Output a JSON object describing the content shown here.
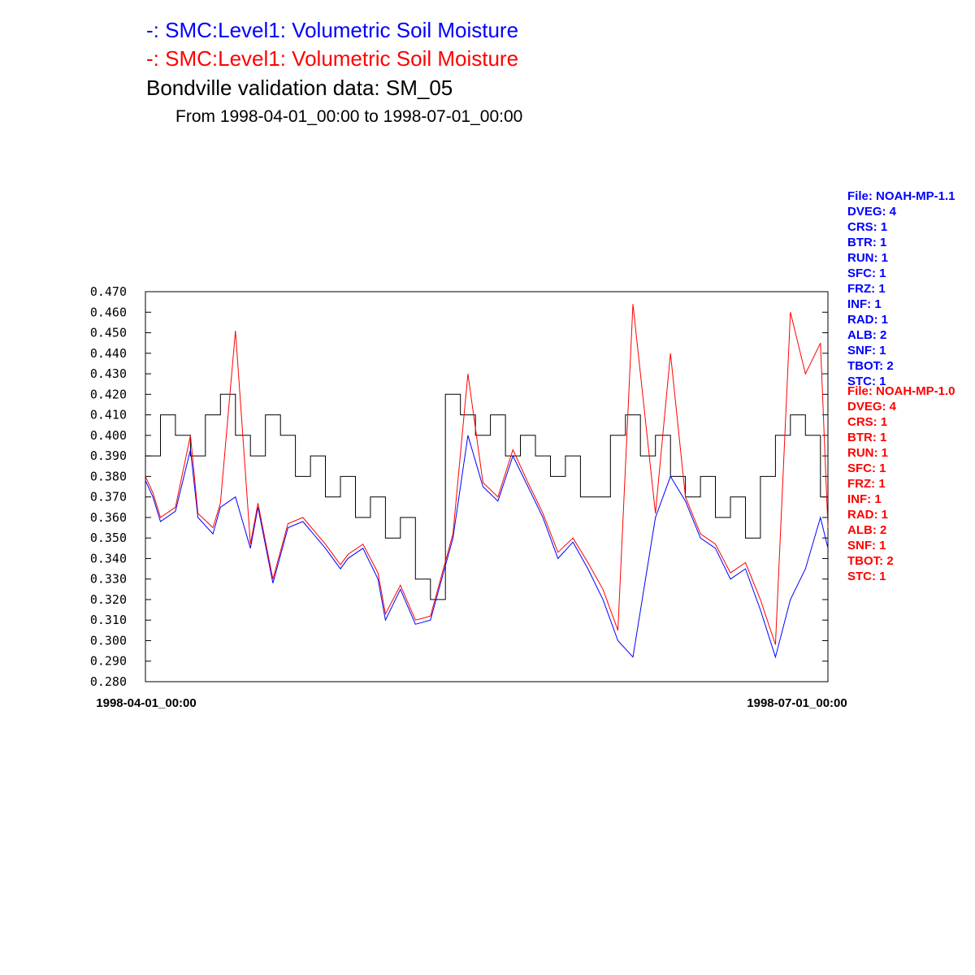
{
  "titles": {
    "line1": "-:  SMC:Level1: Volumetric Soil Moisture",
    "line2": "-:  SMC:Level1: Volumetric Soil Moisture",
    "line3": "Bondville validation data:  SM_05",
    "line4": "From 1998-04-01_00:00 to 1998-07-01_00:00"
  },
  "legends": [
    {
      "color": "#0000ff",
      "lines": [
        "File: NOAH-MP-1.1",
        "DVEG: 4",
        "CRS: 1",
        "BTR: 1",
        "RUN: 1",
        "SFC: 1",
        "FRZ: 1",
        "INF: 1",
        "RAD: 1",
        "ALB: 2",
        "SNF: 1",
        "TBOT: 2",
        "STC: 1"
      ]
    },
    {
      "color": "#ff0000",
      "lines": [
        "File: NOAH-MP-1.0",
        "DVEG: 4",
        "CRS: 1",
        "BTR: 1",
        "RUN: 1",
        "SFC: 1",
        "FRZ: 1",
        "INF: 1",
        "RAD: 1",
        "ALB: 2",
        "SNF: 1",
        "TBOT: 2",
        "STC: 1"
      ]
    }
  ],
  "chart_data": {
    "type": "line",
    "title": "Bondville validation data:  SM_05",
    "subtitle": "From 1998-04-01_00:00 to 1998-07-01_00:00",
    "x_ticks": [
      "1998-04-01_00:00",
      "1998-07-01_00:00"
    ],
    "x_range": [
      "1998-04-01",
      "1998-07-01"
    ],
    "ylim": [
      0.28,
      0.47
    ],
    "y_ticks": [
      "0.280",
      "0.290",
      "0.300",
      "0.310",
      "0.320",
      "0.330",
      "0.340",
      "0.350",
      "0.360",
      "0.370",
      "0.380",
      "0.390",
      "0.400",
      "0.410",
      "0.420",
      "0.430",
      "0.440",
      "0.450",
      "0.460",
      "0.470"
    ],
    "grid": false,
    "series": [
      {
        "name": "SMC:Level1: Volumetric Soil Moisture",
        "color": "#0000ff",
        "x": [
          "1998-04-01",
          "1998-04-02",
          "1998-04-03",
          "1998-04-05",
          "1998-04-07",
          "1998-04-08",
          "1998-04-10",
          "1998-04-11",
          "1998-04-13",
          "1998-04-15",
          "1998-04-16",
          "1998-04-18",
          "1998-04-20",
          "1998-04-22",
          "1998-04-25",
          "1998-04-27",
          "1998-04-28",
          "1998-04-30",
          "1998-05-02",
          "1998-05-03",
          "1998-05-05",
          "1998-05-07",
          "1998-05-09",
          "1998-05-12",
          "1998-05-14",
          "1998-05-16",
          "1998-05-18",
          "1998-05-20",
          "1998-05-22",
          "1998-05-24",
          "1998-05-26",
          "1998-05-28",
          "1998-05-30",
          "1998-06-01",
          "1998-06-03",
          "1998-06-05",
          "1998-06-08",
          "1998-06-10",
          "1998-06-12",
          "1998-06-14",
          "1998-06-16",
          "1998-06-18",
          "1998-06-20",
          "1998-06-22",
          "1998-06-24",
          "1998-06-26",
          "1998-06-28",
          "1998-06-30",
          "1998-07-01"
        ],
        "y": [
          0.378,
          0.37,
          0.358,
          0.363,
          0.393,
          0.36,
          0.352,
          0.365,
          0.37,
          0.345,
          0.365,
          0.328,
          0.355,
          0.358,
          0.345,
          0.335,
          0.34,
          0.345,
          0.33,
          0.31,
          0.325,
          0.308,
          0.31,
          0.35,
          0.4,
          0.375,
          0.368,
          0.39,
          0.375,
          0.36,
          0.34,
          0.348,
          0.335,
          0.32,
          0.3,
          0.292,
          0.36,
          0.38,
          0.368,
          0.35,
          0.345,
          0.33,
          0.335,
          0.315,
          0.292,
          0.32,
          0.335,
          0.36,
          0.345
        ]
      },
      {
        "name": "SMC:Level1: Volumetric Soil Moisture",
        "color": "#ff0000",
        "x": [
          "1998-04-01",
          "1998-04-02",
          "1998-04-03",
          "1998-04-05",
          "1998-04-07",
          "1998-04-08",
          "1998-04-10",
          "1998-04-11",
          "1998-04-13",
          "1998-04-15",
          "1998-04-16",
          "1998-04-18",
          "1998-04-20",
          "1998-04-22",
          "1998-04-25",
          "1998-04-27",
          "1998-04-28",
          "1998-04-30",
          "1998-05-02",
          "1998-05-03",
          "1998-05-05",
          "1998-05-07",
          "1998-05-09",
          "1998-05-12",
          "1998-05-14",
          "1998-05-16",
          "1998-05-18",
          "1998-05-20",
          "1998-05-22",
          "1998-05-24",
          "1998-05-26",
          "1998-05-28",
          "1998-05-30",
          "1998-06-01",
          "1998-06-03",
          "1998-06-05",
          "1998-06-08",
          "1998-06-10",
          "1998-06-12",
          "1998-06-14",
          "1998-06-16",
          "1998-06-18",
          "1998-06-20",
          "1998-06-22",
          "1998-06-24",
          "1998-06-26",
          "1998-06-28",
          "1998-06-30",
          "1998-07-01"
        ],
        "y": [
          0.38,
          0.372,
          0.36,
          0.365,
          0.4,
          0.362,
          0.355,
          0.367,
          0.451,
          0.347,
          0.367,
          0.33,
          0.357,
          0.36,
          0.347,
          0.337,
          0.342,
          0.347,
          0.333,
          0.313,
          0.327,
          0.31,
          0.312,
          0.352,
          0.43,
          0.377,
          0.37,
          0.393,
          0.377,
          0.362,
          0.343,
          0.35,
          0.338,
          0.325,
          0.305,
          0.464,
          0.362,
          0.44,
          0.37,
          0.352,
          0.347,
          0.333,
          0.338,
          0.32,
          0.298,
          0.46,
          0.43,
          0.445,
          0.355
        ]
      },
      {
        "name": "Bondville validation data:  SM_05",
        "color": "#000000",
        "x": [
          "1998-04-01",
          "1998-04-03",
          "1998-04-05",
          "1998-04-07",
          "1998-04-09",
          "1998-04-11",
          "1998-04-13",
          "1998-04-15",
          "1998-04-17",
          "1998-04-19",
          "1998-04-21",
          "1998-04-23",
          "1998-04-25",
          "1998-04-27",
          "1998-04-29",
          "1998-05-01",
          "1998-05-03",
          "1998-05-05",
          "1998-05-07",
          "1998-05-09",
          "1998-05-11",
          "1998-05-13",
          "1998-05-15",
          "1998-05-17",
          "1998-05-19",
          "1998-05-21",
          "1998-05-23",
          "1998-05-25",
          "1998-05-27",
          "1998-05-29",
          "1998-05-31",
          "1998-06-02",
          "1998-06-04",
          "1998-06-06",
          "1998-06-08",
          "1998-06-10",
          "1998-06-12",
          "1998-06-14",
          "1998-06-16",
          "1998-06-18",
          "1998-06-20",
          "1998-06-22",
          "1998-06-24",
          "1998-06-26",
          "1998-06-28",
          "1998-06-30",
          "1998-07-01"
        ],
        "y": [
          0.39,
          0.41,
          0.4,
          0.39,
          0.41,
          0.42,
          0.4,
          0.39,
          0.41,
          0.4,
          0.38,
          0.39,
          0.37,
          0.38,
          0.36,
          0.37,
          0.35,
          0.36,
          0.33,
          0.32,
          0.42,
          0.41,
          0.4,
          0.41,
          0.39,
          0.4,
          0.39,
          0.38,
          0.39,
          0.37,
          0.37,
          0.4,
          0.41,
          0.39,
          0.4,
          0.38,
          0.37,
          0.38,
          0.36,
          0.37,
          0.35,
          0.38,
          0.4,
          0.41,
          0.4,
          0.37,
          0.42
        ]
      }
    ]
  }
}
